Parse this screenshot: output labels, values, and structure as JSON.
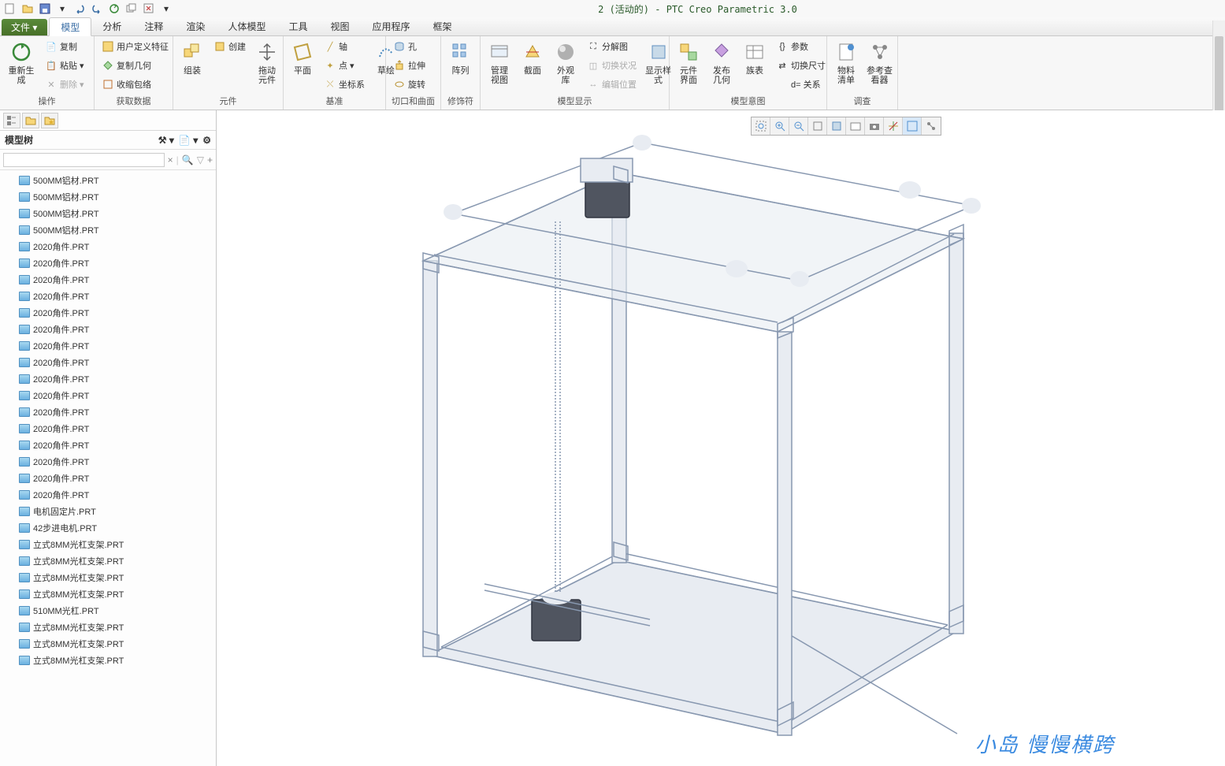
{
  "app": {
    "title": "2 (活动的) - PTC Creo Parametric 3.0"
  },
  "menu": {
    "file": "文件",
    "tabs": [
      "模型",
      "分析",
      "注释",
      "渲染",
      "人体模型",
      "工具",
      "视图",
      "应用程序",
      "框架"
    ],
    "active": 0
  },
  "ribbon": {
    "groups": [
      {
        "label": "操作",
        "items": {
          "regen": "重新生成",
          "copy": "复制",
          "paste": "粘贴",
          "delete": "删除"
        }
      },
      {
        "label": "获取数据",
        "items": {
          "udt": "用户定义特征",
          "copygeom": "复制几何",
          "shrinkwrap": "收缩包络"
        }
      },
      {
        "label": "元件",
        "items": {
          "assemble": "组装",
          "create": "创建",
          "dragcomp": "拖动\n元件"
        }
      },
      {
        "label": "基准",
        "items": {
          "plane": "平面",
          "axis": "轴",
          "point": "点",
          "csys": "坐标系",
          "sketch": "草绘"
        }
      },
      {
        "label": "切口和曲面",
        "items": {
          "hole": "孔",
          "extrude": "拉伸",
          "revolve": "旋转"
        }
      },
      {
        "label": "修饰符",
        "items": {
          "pattern": "阵列"
        }
      },
      {
        "label": "模型显示",
        "items": {
          "manageview": "管理视图",
          "section": "截面",
          "appearance": "外观库",
          "explode": "分解图",
          "toggle": "切换状况",
          "editpos": "编辑位置",
          "dispstyle": "显示样\n式"
        }
      },
      {
        "label": "模型意图",
        "items": {
          "compui": "元件\n界面",
          "pubgeom": "发布\n几何",
          "family": "族表",
          "param": "参数",
          "switchdim": "切换尺寸",
          "relation": "d= 关系"
        }
      },
      {
        "label": "调查",
        "items": {
          "bom": "物料\n清单",
          "refview": "参考查\n看器"
        }
      }
    ]
  },
  "sidebar": {
    "title": "模型树",
    "search_placeholder": "",
    "items": [
      "500MM铝材.PRT",
      "500MM铝材.PRT",
      "500MM铝材.PRT",
      "500MM铝材.PRT",
      "2020角件.PRT",
      "2020角件.PRT",
      "2020角件.PRT",
      "2020角件.PRT",
      "2020角件.PRT",
      "2020角件.PRT",
      "2020角件.PRT",
      "2020角件.PRT",
      "2020角件.PRT",
      "2020角件.PRT",
      "2020角件.PRT",
      "2020角件.PRT",
      "2020角件.PRT",
      "2020角件.PRT",
      "2020角件.PRT",
      "2020角件.PRT",
      "电机固定片.PRT",
      "42步进电机.PRT",
      "立式8MM光杠支架.PRT",
      "立式8MM光杠支架.PRT",
      "立式8MM光杠支架.PRT",
      "立式8MM光杠支架.PRT",
      "510MM光杠.PRT",
      "立式8MM光杠支架.PRT",
      "立式8MM光杠支架.PRT",
      "立式8MM光杠支架.PRT"
    ]
  },
  "watermark": "小岛 慢慢横跨",
  "colors": {
    "frame_stroke": "#8898b0",
    "frame_fill": "#e8ecf2",
    "motor": "#505560",
    "accent_blue": "#3a8ae0",
    "accent_green": "#487028"
  }
}
